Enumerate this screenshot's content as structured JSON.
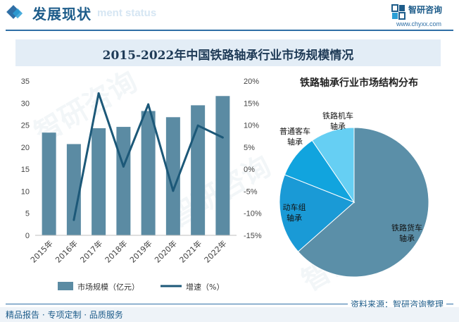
{
  "header": {
    "section_title": "发展现状",
    "section_subtitle": "ment status",
    "brand_name": "智研咨询",
    "brand_url": "www.chyxx.com"
  },
  "colors": {
    "bar": "#5b8ba3",
    "line": "#1c5878",
    "pie_freight": "#5b8fa8",
    "pie_emu": "#1a9ad6",
    "pie_passenger": "#11a4de",
    "pie_locomotive": "#66cff3"
  },
  "chart_data": [
    {
      "type": "bar",
      "title": "2015-2022年中国铁路轴承行业市场规模情况",
      "categories": [
        "2015年",
        "2016年",
        "2017年",
        "2018年",
        "2019年",
        "2020年",
        "2021年",
        "2022年"
      ],
      "series": [
        {
          "name": "市场规模（亿元）",
          "kind": "bar",
          "axis": "left",
          "values": [
            23.3,
            20.7,
            24.3,
            24.6,
            28.2,
            26.8,
            29.5,
            31.6
          ]
        },
        {
          "name": "增速（%）",
          "kind": "line",
          "axis": "right",
          "values": [
            null,
            -11.5,
            17.2,
            0.6,
            14.7,
            -4.9,
            9.9,
            7.2
          ]
        }
      ],
      "ylim": [
        0,
        35
      ],
      "yticks": [
        "0",
        "5",
        "10",
        "15",
        "20",
        "25",
        "30",
        "35"
      ],
      "y2lim": [
        -15,
        20
      ],
      "y2ticks": [
        "-15%",
        "-10%",
        "-5%",
        "0%",
        "5%",
        "10%",
        "15%",
        "20%"
      ],
      "legend": {
        "bar_label": "市场规模（亿元）",
        "line_label": "增速（%）",
        "position": "bottom"
      }
    },
    {
      "type": "pie",
      "title": "铁路轴承行业市场结构分布",
      "slices": [
        {
          "label": "铁路货车轴承",
          "value": 63.5
        },
        {
          "label": "动车组轴承",
          "value": 17.5
        },
        {
          "label": "普通客车轴承",
          "value": 9.5
        },
        {
          "label": "铁路机车轴承",
          "value": 9.5
        }
      ]
    }
  ],
  "footer": {
    "source": "资料来源：智研咨询整理",
    "services": "精品报告 · 专项定制 · 品质服务"
  }
}
